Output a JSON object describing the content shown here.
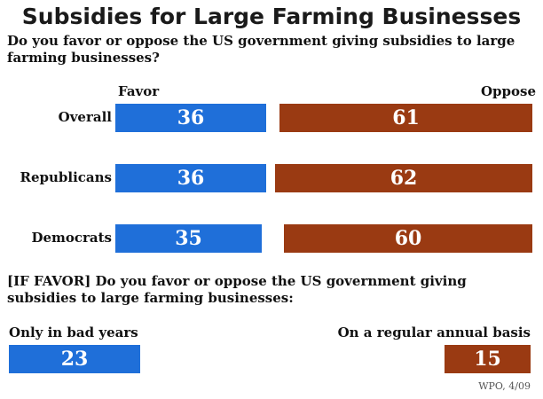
{
  "chart_data": {
    "type": "bar",
    "title": "Subsidies for Large Farming Businesses",
    "question": "Do you favor or oppose the US government giving subsidies to large farming businesses?",
    "series_labels": {
      "favor": "Favor",
      "oppose": "Oppose"
    },
    "categories": [
      "Overall",
      "Republicans",
      "Democrats"
    ],
    "series": [
      {
        "name": "Favor",
        "values": [
          36,
          36,
          35
        ],
        "color": "#1f6fd9"
      },
      {
        "name": "Oppose",
        "values": [
          61,
          62,
          60
        ],
        "color": "#9a3a12"
      }
    ],
    "followup": {
      "question": "[IF FAVOR] Do you favor or oppose the US government giving subsidies to large farming businesses:",
      "categories": [
        "Only in bad years",
        "On a regular annual basis"
      ],
      "values": [
        23,
        15
      ]
    },
    "source": "WPO, 4/09"
  }
}
